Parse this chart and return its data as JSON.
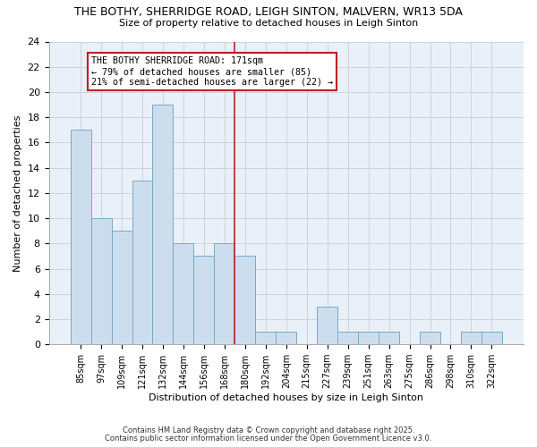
{
  "title_line1": "THE BOTHY, SHERRIDGE ROAD, LEIGH SINTON, MALVERN, WR13 5DA",
  "title_line2": "Size of property relative to detached houses in Leigh Sinton",
  "xlabel": "Distribution of detached houses by size in Leigh Sinton",
  "ylabel": "Number of detached properties",
  "categories": [
    "85sqm",
    "97sqm",
    "109sqm",
    "121sqm",
    "132sqm",
    "144sqm",
    "156sqm",
    "168sqm",
    "180sqm",
    "192sqm",
    "204sqm",
    "215sqm",
    "227sqm",
    "239sqm",
    "251sqm",
    "263sqm",
    "275sqm",
    "286sqm",
    "298sqm",
    "310sqm",
    "322sqm"
  ],
  "values": [
    17,
    10,
    9,
    13,
    19,
    8,
    7,
    8,
    7,
    1,
    1,
    0,
    3,
    1,
    1,
    1,
    0,
    1,
    0,
    1,
    1
  ],
  "bar_color": "#ccdded",
  "bar_edge_color": "#7aaac8",
  "vline_x_index": 7.5,
  "vline_color": "#bb2222",
  "annotation_title": "THE BOTHY SHERRIDGE ROAD: 171sqm",
  "annotation_line2": "← 79% of detached houses are smaller (85)",
  "annotation_line3": "21% of semi-detached houses are larger (22) →",
  "annotation_box_facecolor": "#ffffff",
  "annotation_box_edgecolor": "#bb2222",
  "ylim": [
    0,
    24
  ],
  "yticks": [
    0,
    2,
    4,
    6,
    8,
    10,
    12,
    14,
    16,
    18,
    20,
    22,
    24
  ],
  "footer_line1": "Contains HM Land Registry data © Crown copyright and database right 2025.",
  "footer_line2": "Contains public sector information licensed under the Open Government Licence v3.0.",
  "fig_bg_color": "#ffffff",
  "plot_bg_color": "#eaf0f8",
  "grid_color": "#c8d4e0"
}
